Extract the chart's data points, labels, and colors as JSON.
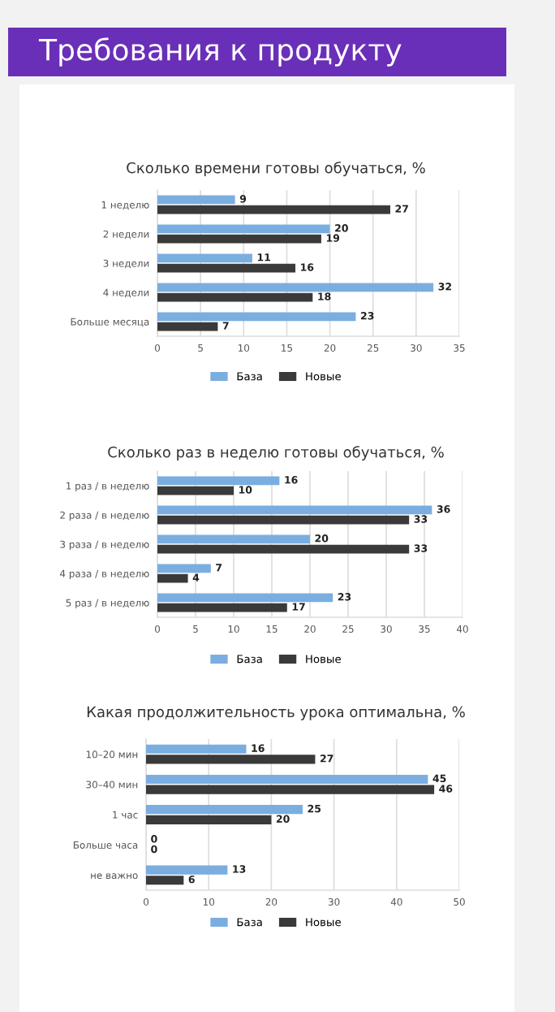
{
  "chart_data": [
    {
      "type": "bar",
      "orientation": "horizontal",
      "title": "Сколько времени готовы обучаться, %",
      "annotations": [
        "Требования к продукту"
      ],
      "categories": [
        "1 неделю",
        "2 недели",
        "3 недели",
        "4 недели",
        "Больше месяца"
      ],
      "series": [
        {
          "name": "База",
          "color": "#7aaee0",
          "values": [
            9,
            20,
            11,
            32,
            23
          ]
        },
        {
          "name": "Новые",
          "color": "#3a3a3a",
          "values": [
            27,
            19,
            16,
            18,
            7
          ]
        }
      ],
      "xlim": [
        0,
        35
      ],
      "xticks": [
        0,
        5,
        10,
        15,
        20,
        25,
        30,
        35
      ],
      "grid": "x",
      "legend": "bottom",
      "data_labels": true
    },
    {
      "type": "bar",
      "orientation": "horizontal",
      "title": "Сколько раз в неделю готовы обучаться, %",
      "categories": [
        "1 раз / в неделю",
        "2 раза / в неделю",
        "3 раза / в неделю",
        "4 раза / в неделю",
        "5 раз / в неделю"
      ],
      "series": [
        {
          "name": "База",
          "color": "#7aaee0",
          "values": [
            16,
            36,
            20,
            7,
            23
          ]
        },
        {
          "name": "Новые",
          "color": "#3a3a3a",
          "values": [
            10,
            33,
            33,
            4,
            17
          ]
        }
      ],
      "xlim": [
        0,
        40
      ],
      "xticks": [
        0,
        5,
        10,
        15,
        20,
        25,
        30,
        35,
        40
      ],
      "grid": "x",
      "legend": "bottom",
      "data_labels": true
    },
    {
      "type": "bar",
      "orientation": "horizontal",
      "title": "Какая продолжительность урока оптимальна, %",
      "categories": [
        "10–20 мин",
        "30–40 мин",
        "1 час",
        "Больше часа",
        "не важно"
      ],
      "series": [
        {
          "name": "База",
          "color": "#7aaee0",
          "values": [
            16,
            45,
            25,
            0,
            13
          ]
        },
        {
          "name": "Новые",
          "color": "#3a3a3a",
          "values": [
            27,
            46,
            20,
            0,
            6
          ]
        }
      ],
      "xlim": [
        0,
        50
      ],
      "xticks": [
        0,
        10,
        20,
        30,
        40,
        50
      ],
      "grid": "x",
      "legend": "bottom",
      "data_labels": true
    }
  ]
}
